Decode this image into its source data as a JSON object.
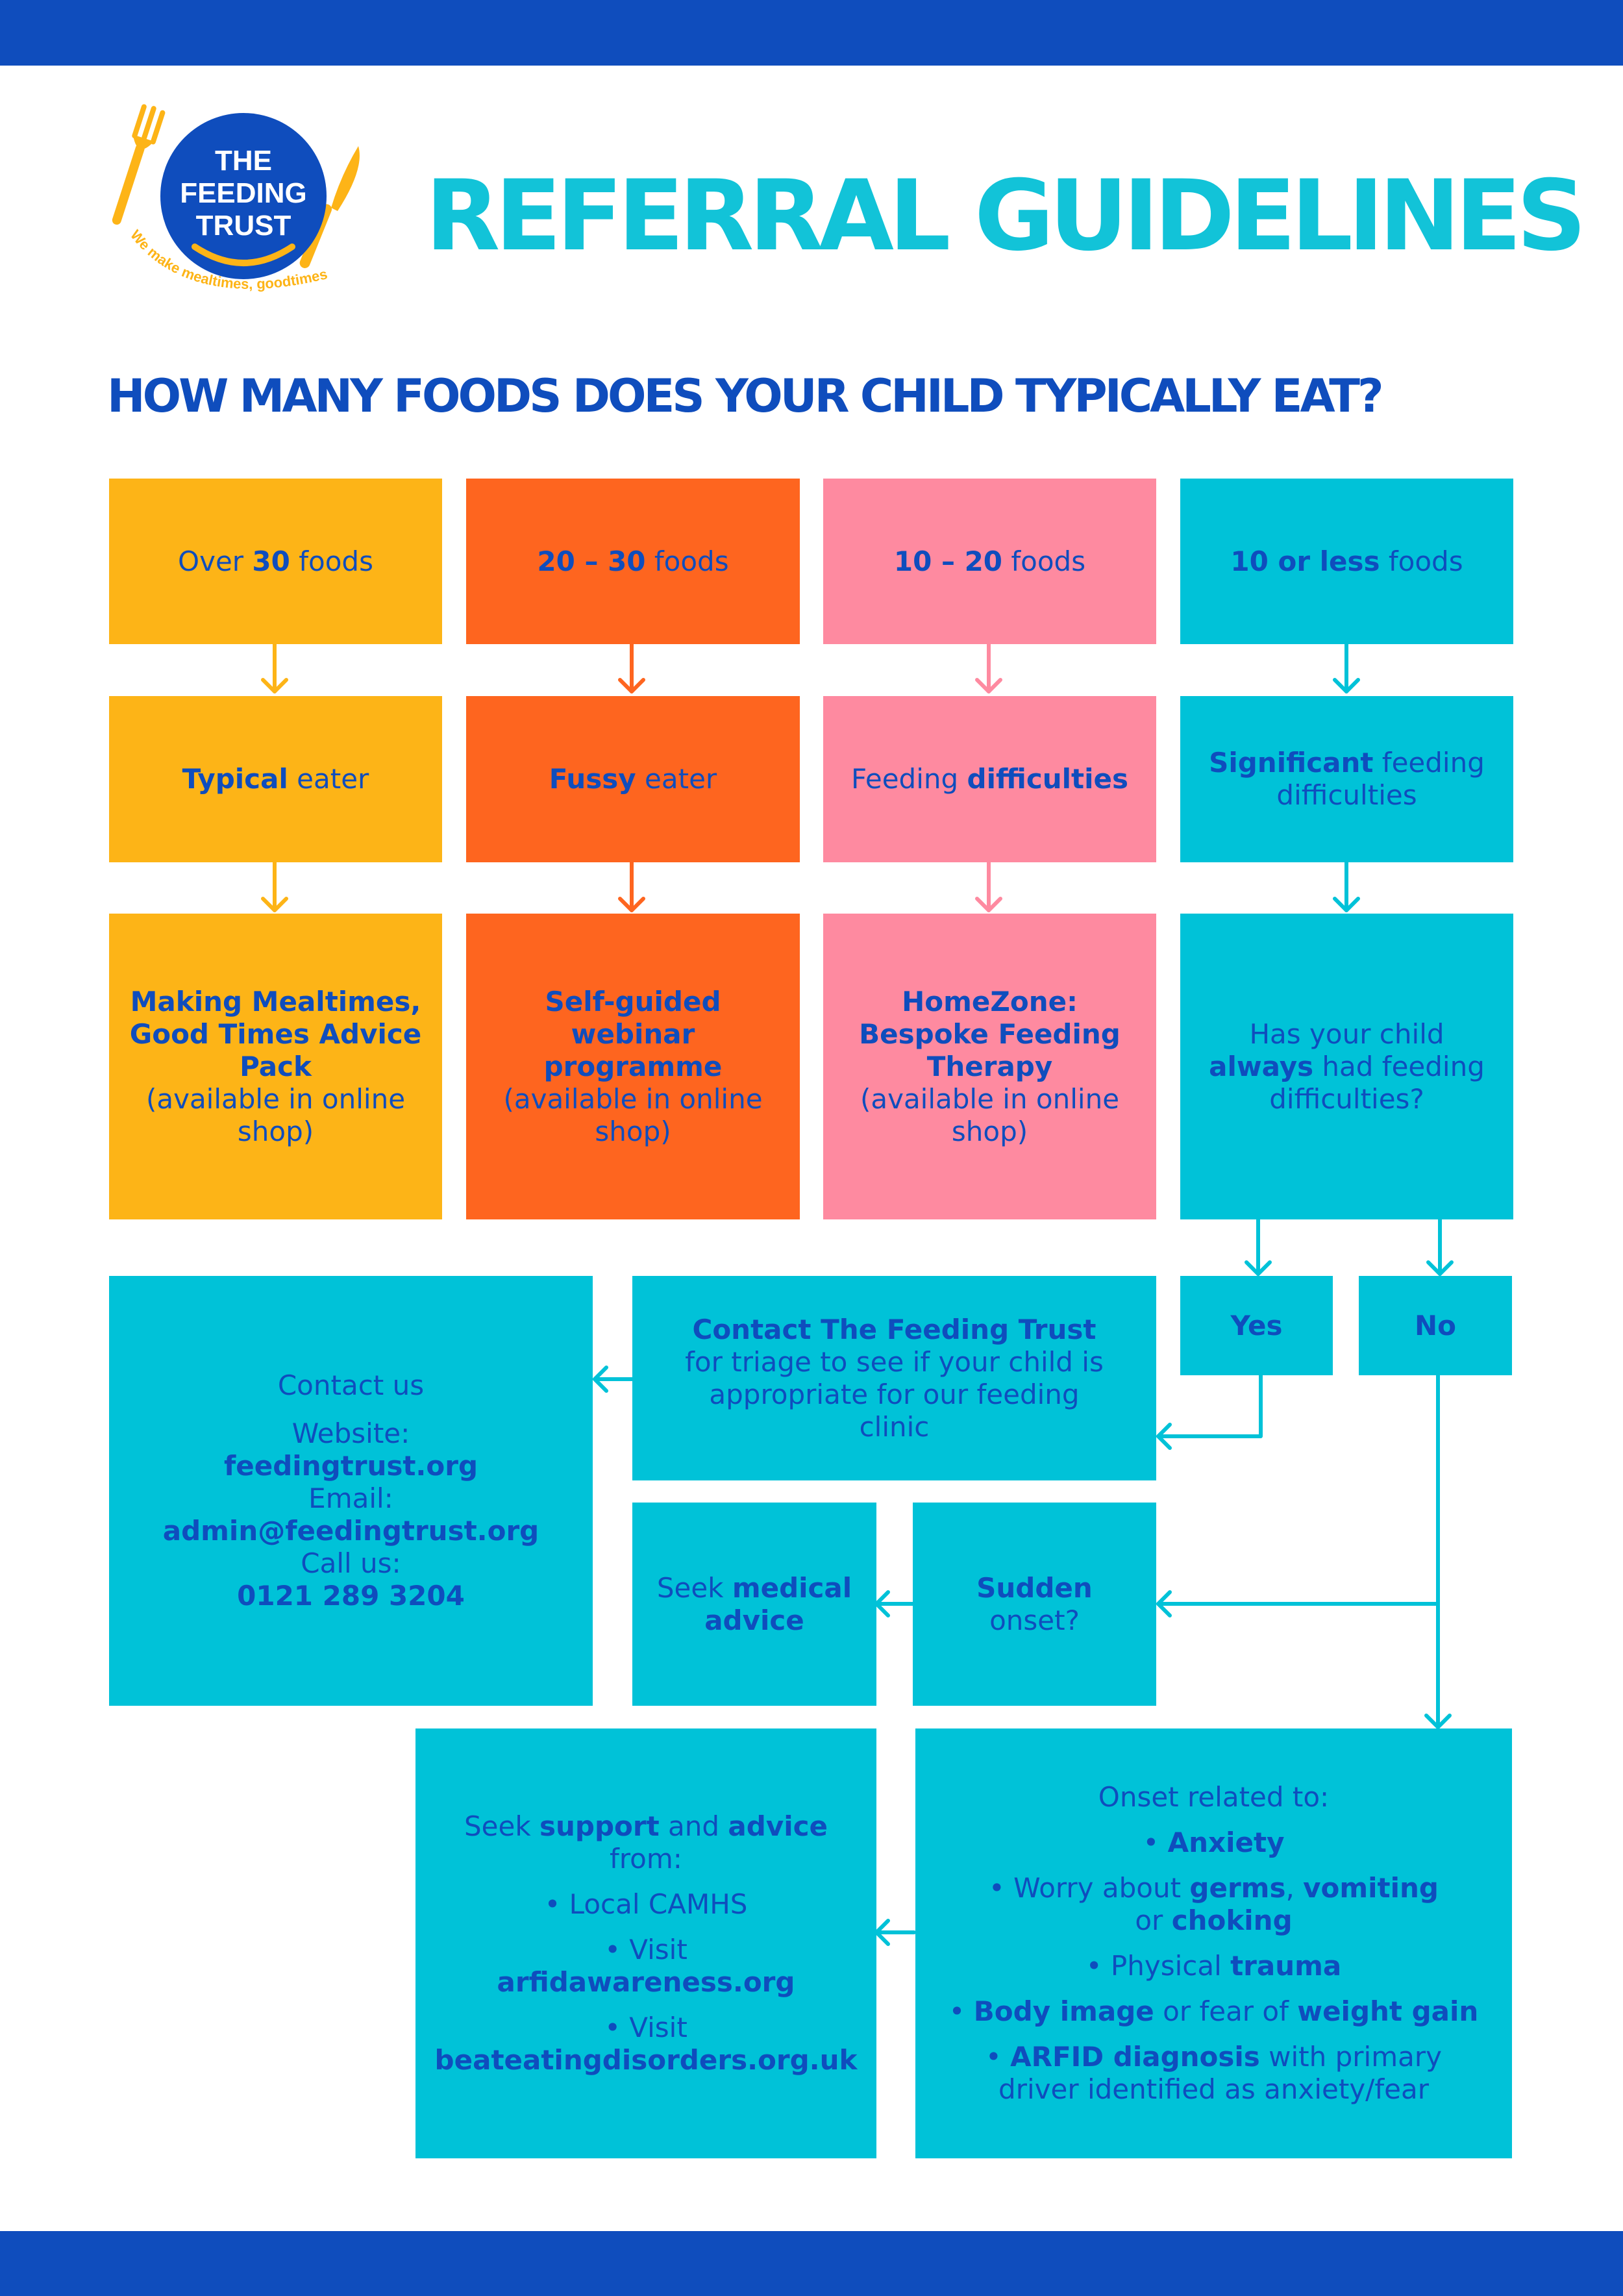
{
  "colors": {
    "brand_blue": "#0f4dbd",
    "teal": "#00c2d8",
    "yellow": "#fdb417",
    "orange": "#fe651f",
    "pink": "#fe8aa0"
  },
  "logo": {
    "line1": "THE",
    "line2": "FEEDING",
    "line3": "TRUST",
    "tagline": "We make mealtimes, goodtimes."
  },
  "header": {
    "title": "REFERRAL GUIDELINES",
    "question": "HOW MANY FOODS DOES YOUR CHILD TYPICALLY EAT?"
  },
  "columns": [
    {
      "count_pre": "Over ",
      "count_bold": "30",
      "count_post": " foods",
      "type_bold": "Typical",
      "type_rest": " eater",
      "result_bold": "Making Mealtimes, Good Times Advice Pack",
      "result_rest": "(available in online shop)"
    },
    {
      "count_pre": "",
      "count_bold": "20 – 30",
      "count_post": " foods",
      "type_bold": "Fussy",
      "type_rest": " eater",
      "result_bold": "Self-guided webinar programme",
      "result_rest": "(available in online shop)"
    },
    {
      "count_pre": "",
      "count_bold": "10 – 20",
      "count_post": " foods",
      "type_pre": "Feeding ",
      "type_bold": "difficulties",
      "result_bold": "HomeZone: Bespoke Feeding Therapy",
      "result_rest": "(available in online shop)"
    },
    {
      "count_pre": "",
      "count_bold": "10 or less",
      "count_post": " foods",
      "type_bold": "Significant",
      "type_rest": " feeding difficulties",
      "q_pre": "Has your child ",
      "q_bold": "always",
      "q_post": " had feeding difficulties?"
    }
  ],
  "answers": {
    "yes": "Yes",
    "no": "No"
  },
  "contact_trust": {
    "bold": "Contact The Feeding Trust",
    "rest": "for triage to see if your child is appropriate for our feeding clinic"
  },
  "contact_us": {
    "heading": "Contact us",
    "website_label": "Website:",
    "website": "feedingtrust.org",
    "email_label": "Email:",
    "email": "admin@feedingtrust.org",
    "call_label": "Call us:",
    "phone": "0121 289 3204"
  },
  "sudden": {
    "bold": "Sudden",
    "rest": "onset?"
  },
  "medical": {
    "pre": "Seek ",
    "bold": "medical advice"
  },
  "onset": {
    "heading": "Onset related to:",
    "b1_pre": "• ",
    "b1_bold": "Anxiety",
    "b2_pre": "• Worry about ",
    "b2_bold1": "germs",
    "b2_sep": ", ",
    "b2_bold2": "vomiting",
    "b2_mid": " or ",
    "b2_bold3": "choking",
    "b3_pre": "• Physical ",
    "b3_bold": "trauma",
    "b4_pre": "• ",
    "b4_bold1": "Body image",
    "b4_mid": " or fear of ",
    "b4_bold2": "weight gain",
    "b5_pre": "• ",
    "b5_bold": "ARFID diagnosis",
    "b5_post": " with primary driver identified as anxiety/fear"
  },
  "support": {
    "pre": "Seek ",
    "bold1": "support",
    "mid": " and ",
    "bold2": "advice",
    "post": " from:",
    "item1": "• Local CAMHS",
    "item2_label": "• Visit",
    "item2_link": "arfidawareness.org",
    "item3_label": "• Visit",
    "item3_link": "beateatingdisorders.org.uk"
  }
}
